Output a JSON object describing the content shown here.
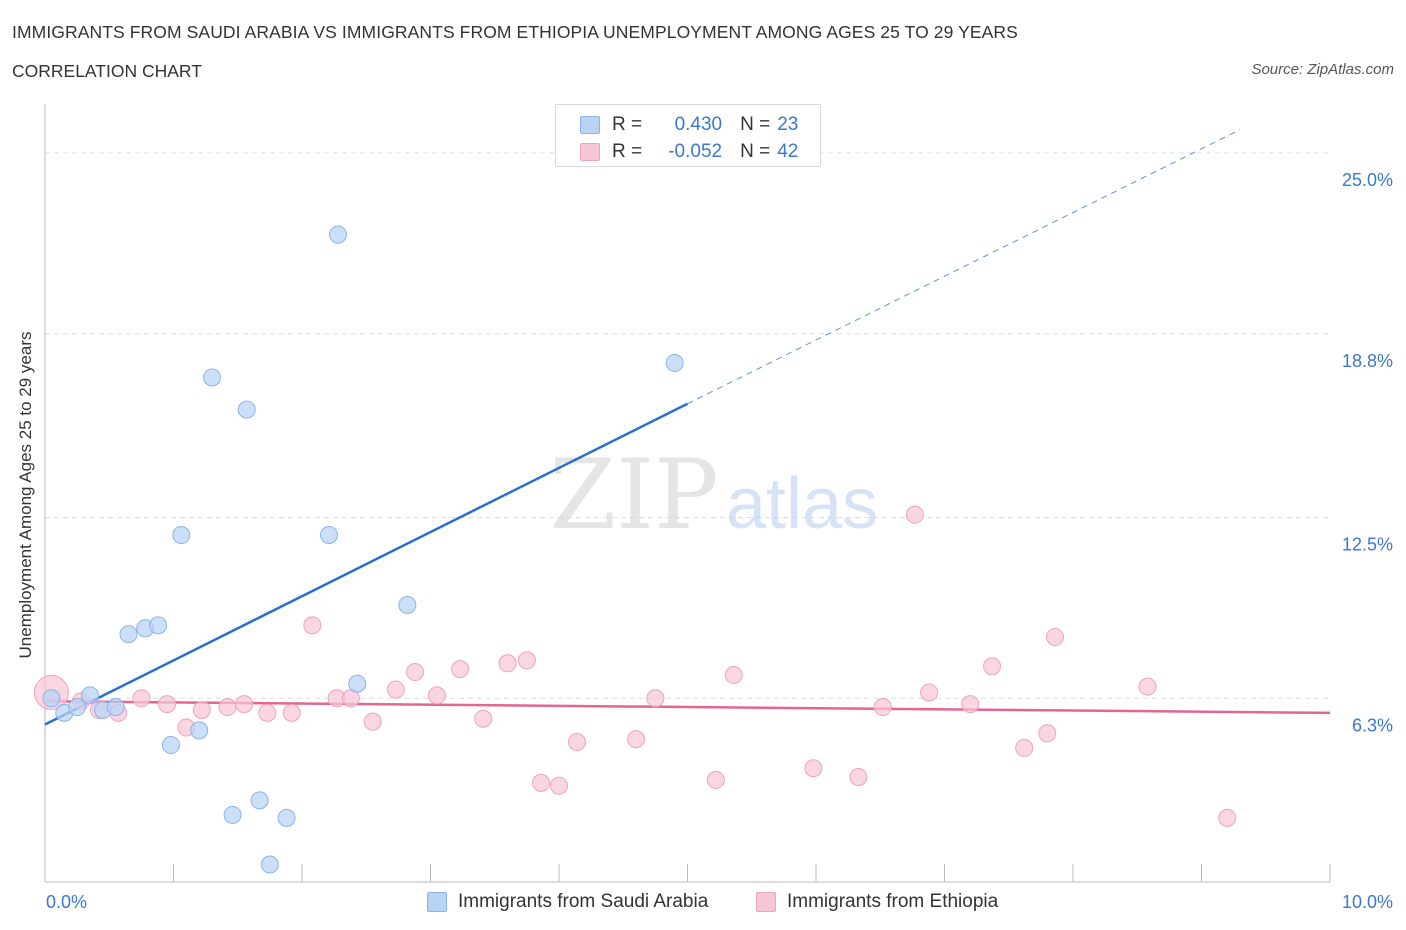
{
  "header": {
    "title": "IMMIGRANTS FROM SAUDI ARABIA VS IMMIGRANTS FROM ETHIOPIA UNEMPLOYMENT AMONG AGES 25 TO 29 YEARS",
    "subtitle": "CORRELATION CHART",
    "source": "Source: ZipAtlas.com"
  },
  "watermark": {
    "zip": "ZIP",
    "atlas": "atlas"
  },
  "legend": {
    "r_label": "R =",
    "n_label": "N =",
    "series1": {
      "r": "0.430",
      "n": "23"
    },
    "series2": {
      "r": "-0.052",
      "n": "42"
    }
  },
  "colors": {
    "blue_fill": "#b8d3f5",
    "blue_stroke": "#8ab4e8",
    "blue_line": "#2a6fcc",
    "pink_fill": "#f7c6d5",
    "pink_stroke": "#eea4bb",
    "pink_line": "#e36691",
    "axis_label": "#3b78cf",
    "grid": "#dddddd"
  },
  "chart_data": {
    "type": "scatter",
    "title": "IMMIGRANTS FROM SAUDI ARABIA VS IMMIGRANTS FROM ETHIOPIA UNEMPLOYMENT AMONG AGES 25 TO 29 YEARS",
    "xlabel": "",
    "ylabel": "Unemployment Among Ages 25 to 29 years",
    "xlim": [
      0,
      10
    ],
    "ylim": [
      0,
      26.2
    ],
    "x_tick_labels": [
      {
        "value": 0,
        "label": "0.0%"
      },
      {
        "value": 10,
        "label": "10.0%"
      }
    ],
    "y_tick_labels": [
      {
        "value": 6.3,
        "label": "6.3%"
      },
      {
        "value": 12.5,
        "label": "12.5%"
      },
      {
        "value": 18.8,
        "label": "18.8%"
      },
      {
        "value": 25.0,
        "label": "25.0%"
      }
    ],
    "grid": true,
    "legend_position": "top-center",
    "series": [
      {
        "name": "Immigrants from Saudi Arabia",
        "color": "#b8d3f5",
        "r": 0.43,
        "n": 23,
        "trend": {
          "x0": 0,
          "y0": 5.4,
          "x1": 5.0,
          "y1": 16.4,
          "dashed_to_x": 9.3,
          "dashed_to_y": 25.8
        },
        "points": [
          {
            "x": 0.05,
            "y": 6.3
          },
          {
            "x": 0.15,
            "y": 5.8
          },
          {
            "x": 0.25,
            "y": 6.0
          },
          {
            "x": 0.35,
            "y": 6.4
          },
          {
            "x": 0.45,
            "y": 5.9
          },
          {
            "x": 0.55,
            "y": 6.0
          },
          {
            "x": 0.65,
            "y": 8.5
          },
          {
            "x": 0.78,
            "y": 8.7
          },
          {
            "x": 0.88,
            "y": 8.8
          },
          {
            "x": 0.98,
            "y": 4.7
          },
          {
            "x": 1.06,
            "y": 11.9
          },
          {
            "x": 1.2,
            "y": 5.2
          },
          {
            "x": 1.3,
            "y": 17.3
          },
          {
            "x": 1.46,
            "y": 2.3
          },
          {
            "x": 1.57,
            "y": 16.2
          },
          {
            "x": 1.67,
            "y": 2.8
          },
          {
            "x": 1.75,
            "y": 0.6
          },
          {
            "x": 1.88,
            "y": 2.2
          },
          {
            "x": 2.21,
            "y": 11.9
          },
          {
            "x": 2.28,
            "y": 22.2
          },
          {
            "x": 2.43,
            "y": 6.8
          },
          {
            "x": 2.82,
            "y": 9.5
          },
          {
            "x": 4.9,
            "y": 17.8
          }
        ]
      },
      {
        "name": "Immigrants from Ethiopia",
        "color": "#f7c6d5",
        "r": -0.052,
        "n": 42,
        "trend": {
          "x0": 0,
          "y0": 6.2,
          "x1": 10,
          "y1": 5.8
        },
        "points": [
          {
            "x": 0.05,
            "y": 6.5,
            "big": true
          },
          {
            "x": 0.28,
            "y": 6.2
          },
          {
            "x": 0.42,
            "y": 5.9
          },
          {
            "x": 0.57,
            "y": 5.8
          },
          {
            "x": 0.75,
            "y": 6.3
          },
          {
            "x": 0.95,
            "y": 6.1
          },
          {
            "x": 1.1,
            "y": 5.3
          },
          {
            "x": 1.22,
            "y": 5.9
          },
          {
            "x": 1.42,
            "y": 6.0
          },
          {
            "x": 1.55,
            "y": 6.1
          },
          {
            "x": 1.73,
            "y": 5.8
          },
          {
            "x": 1.92,
            "y": 5.8
          },
          {
            "x": 2.08,
            "y": 8.8
          },
          {
            "x": 2.27,
            "y": 6.3
          },
          {
            "x": 2.38,
            "y": 6.3
          },
          {
            "x": 2.55,
            "y": 5.5
          },
          {
            "x": 2.73,
            "y": 6.6
          },
          {
            "x": 2.88,
            "y": 7.2
          },
          {
            "x": 3.05,
            "y": 6.4
          },
          {
            "x": 3.23,
            "y": 7.3
          },
          {
            "x": 3.41,
            "y": 5.6
          },
          {
            "x": 3.6,
            "y": 7.5
          },
          {
            "x": 3.75,
            "y": 7.6
          },
          {
            "x": 3.86,
            "y": 3.4
          },
          {
            "x": 4.0,
            "y": 3.3
          },
          {
            "x": 4.14,
            "y": 4.8
          },
          {
            "x": 4.6,
            "y": 4.9
          },
          {
            "x": 4.75,
            "y": 6.3
          },
          {
            "x": 5.22,
            "y": 3.5
          },
          {
            "x": 5.36,
            "y": 7.1
          },
          {
            "x": 5.98,
            "y": 3.9
          },
          {
            "x": 6.33,
            "y": 3.6
          },
          {
            "x": 6.52,
            "y": 6.0
          },
          {
            "x": 6.77,
            "y": 12.6
          },
          {
            "x": 6.88,
            "y": 6.5
          },
          {
            "x": 7.2,
            "y": 6.1
          },
          {
            "x": 7.37,
            "y": 7.4
          },
          {
            "x": 7.62,
            "y": 4.6
          },
          {
            "x": 7.8,
            "y": 5.1
          },
          {
            "x": 7.86,
            "y": 8.4
          },
          {
            "x": 8.58,
            "y": 6.7
          },
          {
            "x": 9.2,
            "y": 2.2
          }
        ]
      }
    ]
  }
}
